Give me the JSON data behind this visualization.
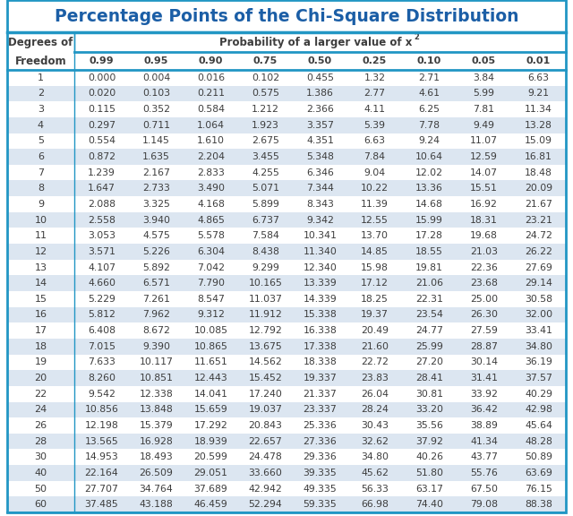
{
  "title": "Percentage Points of the Chi-Square Distribution",
  "col_header_left_line1": "Degrees of",
  "col_header_left_line2": "Freedom",
  "prob_header": "Probability of a larger value of x",
  "prob_superscript": "2",
  "prob_labels": [
    "0.99",
    "0.95",
    "0.90",
    "0.75",
    "0.50",
    "0.25",
    "0.10",
    "0.05",
    "0.01"
  ],
  "rows": [
    [
      1,
      "0.000",
      "0.004",
      "0.016",
      "0.102",
      "0.455",
      "1.32",
      "2.71",
      "3.84",
      "6.63"
    ],
    [
      2,
      "0.020",
      "0.103",
      "0.211",
      "0.575",
      "1.386",
      "2.77",
      "4.61",
      "5.99",
      "9.21"
    ],
    [
      3,
      "0.115",
      "0.352",
      "0.584",
      "1.212",
      "2.366",
      "4.11",
      "6.25",
      "7.81",
      "11.34"
    ],
    [
      4,
      "0.297",
      "0.711",
      "1.064",
      "1.923",
      "3.357",
      "5.39",
      "7.78",
      "9.49",
      "13.28"
    ],
    [
      5,
      "0.554",
      "1.145",
      "1.610",
      "2.675",
      "4.351",
      "6.63",
      "9.24",
      "11.07",
      "15.09"
    ],
    [
      6,
      "0.872",
      "1.635",
      "2.204",
      "3.455",
      "5.348",
      "7.84",
      "10.64",
      "12.59",
      "16.81"
    ],
    [
      7,
      "1.239",
      "2.167",
      "2.833",
      "4.255",
      "6.346",
      "9.04",
      "12.02",
      "14.07",
      "18.48"
    ],
    [
      8,
      "1.647",
      "2.733",
      "3.490",
      "5.071",
      "7.344",
      "10.22",
      "13.36",
      "15.51",
      "20.09"
    ],
    [
      9,
      "2.088",
      "3.325",
      "4.168",
      "5.899",
      "8.343",
      "11.39",
      "14.68",
      "16.92",
      "21.67"
    ],
    [
      10,
      "2.558",
      "3.940",
      "4.865",
      "6.737",
      "9.342",
      "12.55",
      "15.99",
      "18.31",
      "23.21"
    ],
    [
      11,
      "3.053",
      "4.575",
      "5.578",
      "7.584",
      "10.341",
      "13.70",
      "17.28",
      "19.68",
      "24.72"
    ],
    [
      12,
      "3.571",
      "5.226",
      "6.304",
      "8.438",
      "11.340",
      "14.85",
      "18.55",
      "21.03",
      "26.22"
    ],
    [
      13,
      "4.107",
      "5.892",
      "7.042",
      "9.299",
      "12.340",
      "15.98",
      "19.81",
      "22.36",
      "27.69"
    ],
    [
      14,
      "4.660",
      "6.571",
      "7.790",
      "10.165",
      "13.339",
      "17.12",
      "21.06",
      "23.68",
      "29.14"
    ],
    [
      15,
      "5.229",
      "7.261",
      "8.547",
      "11.037",
      "14.339",
      "18.25",
      "22.31",
      "25.00",
      "30.58"
    ],
    [
      16,
      "5.812",
      "7.962",
      "9.312",
      "11.912",
      "15.338",
      "19.37",
      "23.54",
      "26.30",
      "32.00"
    ],
    [
      17,
      "6.408",
      "8.672",
      "10.085",
      "12.792",
      "16.338",
      "20.49",
      "24.77",
      "27.59",
      "33.41"
    ],
    [
      18,
      "7.015",
      "9.390",
      "10.865",
      "13.675",
      "17.338",
      "21.60",
      "25.99",
      "28.87",
      "34.80"
    ],
    [
      19,
      "7.633",
      "10.117",
      "11.651",
      "14.562",
      "18.338",
      "22.72",
      "27.20",
      "30.14",
      "36.19"
    ],
    [
      20,
      "8.260",
      "10.851",
      "12.443",
      "15.452",
      "19.337",
      "23.83",
      "28.41",
      "31.41",
      "37.57"
    ],
    [
      22,
      "9.542",
      "12.338",
      "14.041",
      "17.240",
      "21.337",
      "26.04",
      "30.81",
      "33.92",
      "40.29"
    ],
    [
      24,
      "10.856",
      "13.848",
      "15.659",
      "19.037",
      "23.337",
      "28.24",
      "33.20",
      "36.42",
      "42.98"
    ],
    [
      26,
      "12.198",
      "15.379",
      "17.292",
      "20.843",
      "25.336",
      "30.43",
      "35.56",
      "38.89",
      "45.64"
    ],
    [
      28,
      "13.565",
      "16.928",
      "18.939",
      "22.657",
      "27.336",
      "32.62",
      "37.92",
      "41.34",
      "48.28"
    ],
    [
      30,
      "14.953",
      "18.493",
      "20.599",
      "24.478",
      "29.336",
      "34.80",
      "40.26",
      "43.77",
      "50.89"
    ],
    [
      40,
      "22.164",
      "26.509",
      "29.051",
      "33.660",
      "39.335",
      "45.62",
      "51.80",
      "55.76",
      "63.69"
    ],
    [
      50,
      "27.707",
      "34.764",
      "37.689",
      "42.942",
      "49.335",
      "56.33",
      "63.17",
      "67.50",
      "76.15"
    ],
    [
      60,
      "37.485",
      "43.188",
      "46.459",
      "52.294",
      "59.335",
      "66.98",
      "74.40",
      "79.08",
      "88.38"
    ]
  ],
  "title_color": "#1B5EA6",
  "title_underline_color": "#2196C4",
  "col_sep_color": "#2196C4",
  "row_even_bg": "#FFFFFF",
  "row_odd_bg": "#DCE6F1",
  "border_color": "#2196C4",
  "text_color": "#3D3D3D",
  "header_text_color": "#3D3D3D",
  "bg_color": "#FFFFFF"
}
